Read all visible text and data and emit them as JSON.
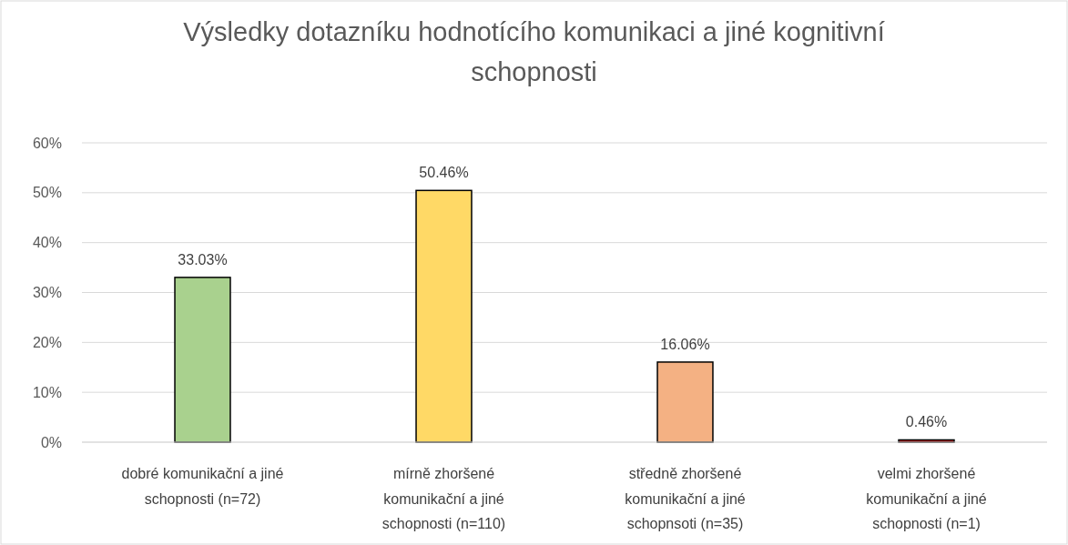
{
  "chart_data": {
    "type": "bar",
    "title": "Výsledky dotazníku hodnotícího komunikaci a jiné kognitivní schopnosti",
    "categories": [
      "dobré komunikační a jiné schopnosti (n=72)",
      "mírně zhoršené komunikační a jiné schopnosti (n=110)",
      "středně zhoršené komunikační a jiné schopnsoti (n=35)",
      "velmi zhoršené komunikační a jiné schopnosti (n=1)"
    ],
    "values": [
      33.03,
      50.46,
      16.06,
      0.46
    ],
    "colors": [
      "#a9d18e",
      "#ffd966",
      "#f4b183",
      "#c00000"
    ],
    "value_labels": [
      "33.03%",
      "50.46%",
      "16.06%",
      "0.46%"
    ],
    "ylim": [
      0,
      60
    ],
    "yticks": [
      {
        "value": 0,
        "label": "0%"
      },
      {
        "value": 10,
        "label": "10%"
      },
      {
        "value": 20,
        "label": "20%"
      },
      {
        "value": 30,
        "label": "30%"
      },
      {
        "value": 40,
        "label": "40%"
      },
      {
        "value": 50,
        "label": "50%"
      },
      {
        "value": 60,
        "label": "60%"
      }
    ],
    "grid": "y"
  }
}
